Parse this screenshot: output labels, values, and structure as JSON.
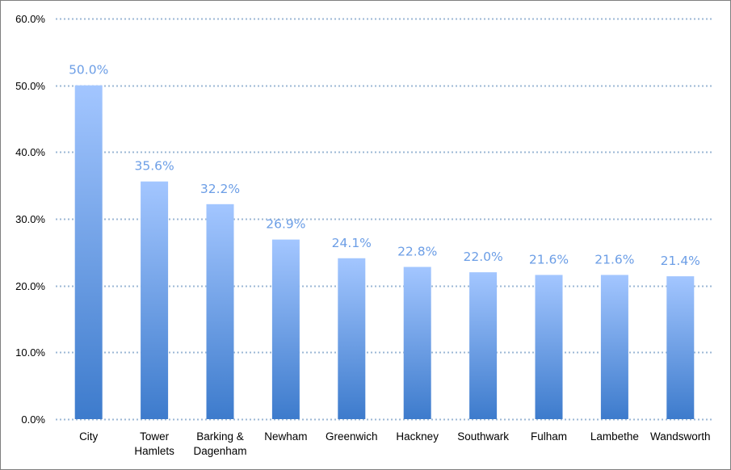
{
  "chart_data": {
    "type": "bar",
    "title": "",
    "xlabel": "",
    "ylabel": "",
    "categories": [
      [
        "City"
      ],
      [
        "Tower",
        "Hamlets"
      ],
      [
        "Barking &",
        "Dagenham"
      ],
      [
        "Newham"
      ],
      [
        "Greenwich"
      ],
      [
        "Hackney"
      ],
      [
        "Southwark"
      ],
      [
        "Fulham"
      ],
      [
        "Lambethe"
      ],
      [
        "Wandsworth"
      ]
    ],
    "values": [
      50.0,
      35.6,
      32.2,
      26.9,
      24.1,
      22.8,
      22.0,
      21.6,
      21.6,
      21.4
    ],
    "data_labels": [
      "50.0%",
      "35.6%",
      "32.2%",
      "26.9%",
      "24.1%",
      "22.8%",
      "22.0%",
      "21.6%",
      "21.6%",
      "21.4%"
    ],
    "ylim": [
      0,
      60
    ],
    "yticks": [
      0,
      10,
      20,
      30,
      40,
      50,
      60
    ],
    "ytick_labels": [
      "0.0%",
      "10.0%",
      "20.0%",
      "30.0%",
      "40.0%",
      "50.0%",
      "60.0%"
    ],
    "grid": true,
    "legend": "none",
    "colors": {
      "bar_top": "#a3c6ff",
      "bar_bottom": "#3d7bcc",
      "data_label": "#6c9ee6",
      "gridline": "#9bb7d4"
    }
  }
}
